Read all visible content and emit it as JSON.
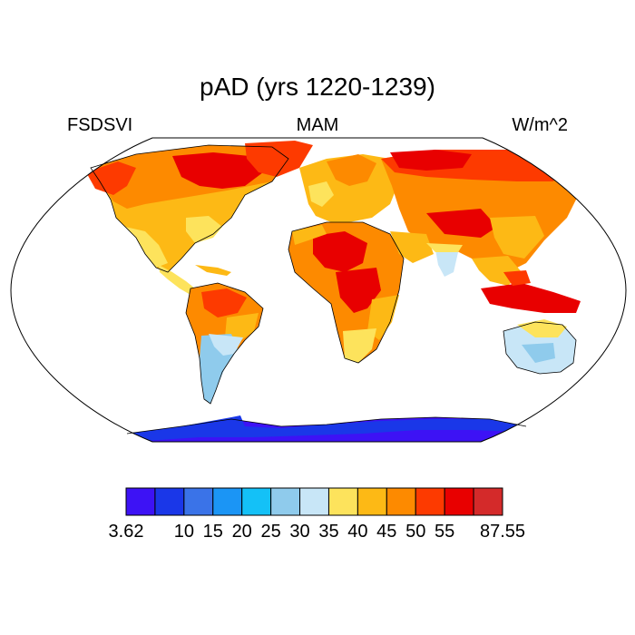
{
  "header": {
    "title": "pAD (yrs 1220-1239)",
    "left_label": "FSDSVI",
    "center_label": "MAM",
    "right_label": "W/m^2"
  },
  "legend": {
    "labels": [
      "3.62",
      "10",
      "15",
      "20",
      "25",
      "30",
      "35",
      "40",
      "45",
      "50",
      "55",
      "87.55"
    ],
    "colors": [
      "#3d12f5",
      "#1a37e8",
      "#3a73e8",
      "#1b95f5",
      "#14c1f7",
      "#8fcbec",
      "#c8e6f7",
      "#fde35c",
      "#fdb915",
      "#fd8a00",
      "#fd3a00",
      "#e80000",
      "#d42a2a"
    ]
  },
  "map": {
    "projection": "Robinson",
    "region_colors": {
      "antarctica": "#3d12f5",
      "antarctica_edge": "#1a37e8",
      "ocean": "#ffffff",
      "hot": "#e80000",
      "warm": "#fd3a00",
      "mild": "#fd8a00",
      "mid": "#fdb915",
      "cool": "#fde35c",
      "cold": "#8fcbec",
      "colder": "#c8e6f7"
    }
  }
}
